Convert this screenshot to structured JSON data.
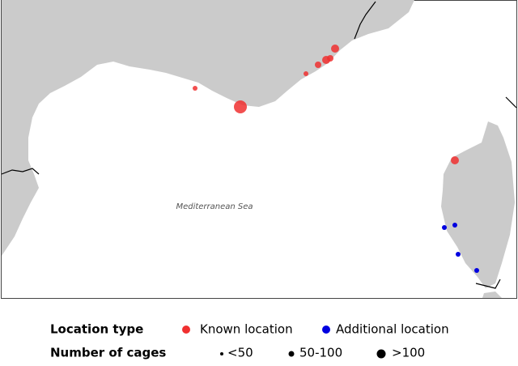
{
  "map": {
    "sea_label": "Mediterranean Sea"
  },
  "legend": {
    "location_type": {
      "title": "Location type",
      "items": [
        "Known location",
        "Additional location"
      ]
    },
    "number_of_cages": {
      "title": "Number of cages",
      "items": [
        "<50",
        "50-100",
        ">100"
      ]
    }
  }
}
